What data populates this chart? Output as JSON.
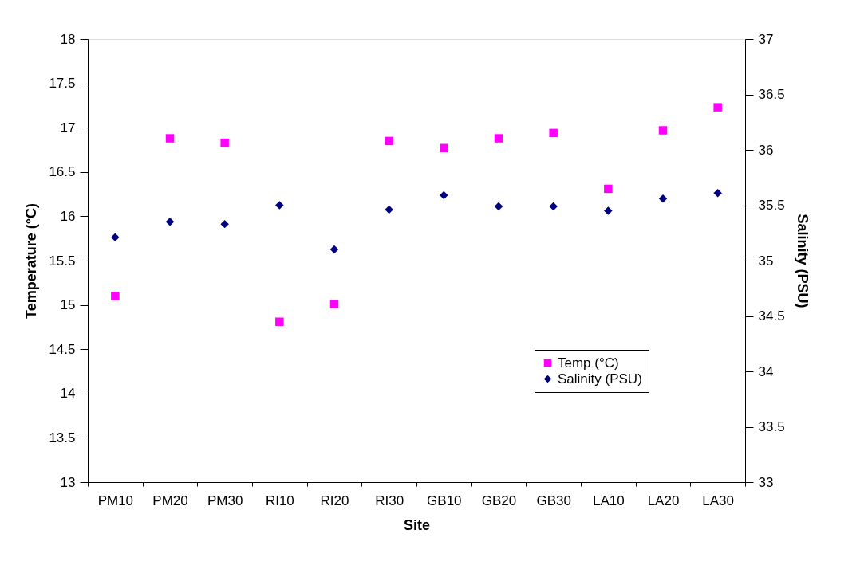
{
  "chart_data": {
    "type": "scatter",
    "xlabel": "Site",
    "ylabel": "Temperature (°C)",
    "y2label": "Salinity (PSU)",
    "categories": [
      "PM10",
      "PM20",
      "PM30",
      "RI10",
      "RI20",
      "RI30",
      "GB10",
      "GB20",
      "GB30",
      "LA10",
      "LA20",
      "LA30"
    ],
    "series": [
      {
        "name": "Temp (°C)",
        "color": "#ff00ff",
        "marker": "square",
        "values": [
          15.1,
          16.88,
          16.83,
          14.81,
          15.01,
          16.85,
          16.77,
          16.88,
          16.94,
          16.31,
          16.97,
          17.23
        ]
      },
      {
        "name": "Salinity (PSU)",
        "color": "#000080",
        "marker": "diamond",
        "axis": "y2",
        "values": [
          35.21,
          35.35,
          35.33,
          35.5,
          35.1,
          35.46,
          35.59,
          35.49,
          35.49,
          35.45,
          35.56,
          35.61
        ]
      }
    ],
    "ylim": [
      13,
      18
    ],
    "yticks": [
      13,
      13.5,
      14,
      14.5,
      15,
      15.5,
      16,
      16.5,
      17,
      17.5,
      18
    ],
    "y2lim": [
      33,
      37
    ],
    "y2ticks": [
      33,
      33.5,
      34,
      34.5,
      35,
      35.5,
      36,
      36.5,
      37
    ],
    "grid": false,
    "legend": "bottom right"
  }
}
